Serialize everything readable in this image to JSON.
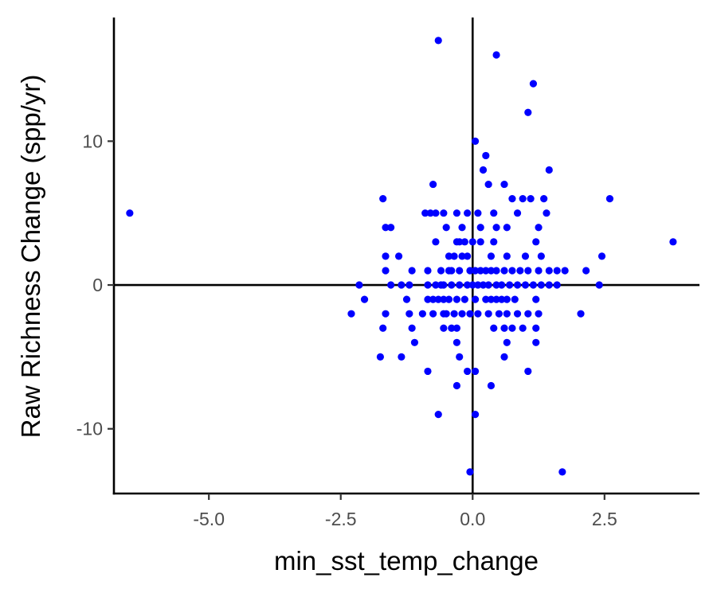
{
  "chart_data": {
    "type": "scatter",
    "title": "",
    "xlabel": "min_sst_temp_change",
    "ylabel": "Raw Richness Change (spp/yr)",
    "xlim": [
      -6.8,
      4.3
    ],
    "ylim": [
      -14.5,
      18.6
    ],
    "x_ticks": [
      {
        "value": -5.0,
        "label": "-5.0"
      },
      {
        "value": -2.5,
        "label": "-2.5"
      },
      {
        "value": 0.0,
        "label": "0.0"
      },
      {
        "value": 2.5,
        "label": "2.5"
      }
    ],
    "y_ticks": [
      {
        "value": -10,
        "label": "-10"
      },
      {
        "value": 0,
        "label": "0"
      },
      {
        "value": 10,
        "label": "10"
      }
    ],
    "reference_lines": {
      "x": 0,
      "y": 0
    },
    "grid": false,
    "point_color": "#0000ff",
    "points": [
      [
        -6.5,
        5
      ],
      [
        -0.65,
        17
      ],
      [
        0.45,
        16
      ],
      [
        1.15,
        14
      ],
      [
        1.05,
        12
      ],
      [
        0.05,
        10
      ],
      [
        0.25,
        9
      ],
      [
        0.2,
        8
      ],
      [
        1.45,
        8
      ],
      [
        0.3,
        7
      ],
      [
        -0.75,
        7
      ],
      [
        0.6,
        7
      ],
      [
        -1.7,
        6
      ],
      [
        0.75,
        6
      ],
      [
        0.95,
        6
      ],
      [
        1.35,
        6
      ],
      [
        2.6,
        6
      ],
      [
        1.1,
        6
      ],
      [
        -0.9,
        5
      ],
      [
        -0.7,
        5
      ],
      [
        -0.55,
        5
      ],
      [
        -0.3,
        5
      ],
      [
        -0.1,
        5
      ],
      [
        0.1,
        5
      ],
      [
        0.4,
        5
      ],
      [
        0.85,
        5
      ],
      [
        1.4,
        5
      ],
      [
        -0.8,
        5
      ],
      [
        -1.65,
        4
      ],
      [
        -1.55,
        4
      ],
      [
        -0.5,
        4
      ],
      [
        -0.2,
        4
      ],
      [
        0.45,
        4
      ],
      [
        0.15,
        4
      ],
      [
        1.25,
        4
      ],
      [
        0.65,
        4
      ],
      [
        -0.7,
        3
      ],
      [
        -0.3,
        3
      ],
      [
        -0.15,
        3
      ],
      [
        0.0,
        3
      ],
      [
        0.15,
        3
      ],
      [
        0.4,
        3
      ],
      [
        1.2,
        3
      ],
      [
        3.8,
        3
      ],
      [
        -0.25,
        3
      ],
      [
        -1.65,
        2
      ],
      [
        -1.4,
        2
      ],
      [
        -0.45,
        2
      ],
      [
        -0.35,
        2
      ],
      [
        -0.1,
        2
      ],
      [
        0.35,
        2
      ],
      [
        0.65,
        2
      ],
      [
        1.0,
        2
      ],
      [
        1.3,
        2
      ],
      [
        2.45,
        2
      ],
      [
        -0.2,
        2
      ],
      [
        -1.65,
        1
      ],
      [
        -1.15,
        1
      ],
      [
        -0.85,
        1
      ],
      [
        -0.6,
        1
      ],
      [
        -0.4,
        1
      ],
      [
        -0.25,
        1
      ],
      [
        -0.05,
        1
      ],
      [
        0.05,
        1
      ],
      [
        0.15,
        1
      ],
      [
        0.25,
        1
      ],
      [
        0.45,
        1
      ],
      [
        0.6,
        1
      ],
      [
        0.75,
        1
      ],
      [
        0.9,
        1
      ],
      [
        1.05,
        1
      ],
      [
        1.25,
        1
      ],
      [
        1.45,
        1
      ],
      [
        1.6,
        1
      ],
      [
        1.75,
        1
      ],
      [
        2.15,
        1
      ],
      [
        -0.45,
        1
      ],
      [
        0.35,
        1
      ],
      [
        -2.15,
        0
      ],
      [
        -1.55,
        0
      ],
      [
        -1.35,
        0
      ],
      [
        -1.2,
        0
      ],
      [
        -0.85,
        0
      ],
      [
        -0.7,
        0
      ],
      [
        -0.55,
        0
      ],
      [
        -0.4,
        0
      ],
      [
        -0.25,
        0
      ],
      [
        -0.1,
        0
      ],
      [
        0.0,
        0
      ],
      [
        0.1,
        0
      ],
      [
        0.2,
        0
      ],
      [
        0.3,
        0
      ],
      [
        0.45,
        0
      ],
      [
        0.55,
        0
      ],
      [
        0.7,
        0
      ],
      [
        0.85,
        0
      ],
      [
        1.0,
        0
      ],
      [
        1.15,
        0
      ],
      [
        1.3,
        0
      ],
      [
        1.45,
        0
      ],
      [
        1.6,
        0
      ],
      [
        2.4,
        0
      ],
      [
        -0.6,
        0
      ],
      [
        -2.05,
        -1
      ],
      [
        -1.25,
        -1
      ],
      [
        -0.85,
        -1
      ],
      [
        -0.65,
        -1
      ],
      [
        -0.55,
        -1
      ],
      [
        -0.45,
        -1
      ],
      [
        -0.3,
        -1
      ],
      [
        -0.15,
        -1
      ],
      [
        0.05,
        -1
      ],
      [
        0.25,
        -1
      ],
      [
        0.45,
        -1
      ],
      [
        0.55,
        -1
      ],
      [
        0.65,
        -1
      ],
      [
        0.8,
        -1
      ],
      [
        1.2,
        -1
      ],
      [
        -0.75,
        -1
      ],
      [
        0.35,
        -1
      ],
      [
        -2.3,
        -2
      ],
      [
        -1.65,
        -2
      ],
      [
        -1.2,
        -2
      ],
      [
        -0.95,
        -2
      ],
      [
        -0.75,
        -2
      ],
      [
        -0.5,
        -2
      ],
      [
        -0.35,
        -2
      ],
      [
        -0.2,
        -2
      ],
      [
        -0.05,
        -2
      ],
      [
        0.1,
        -2
      ],
      [
        0.3,
        -2
      ],
      [
        0.5,
        -2
      ],
      [
        0.65,
        -2
      ],
      [
        0.85,
        -2
      ],
      [
        1.05,
        -2
      ],
      [
        1.25,
        -2
      ],
      [
        2.05,
        -2
      ],
      [
        -0.55,
        -2
      ],
      [
        -1.7,
        -3
      ],
      [
        -1.15,
        -3
      ],
      [
        -0.55,
        -3
      ],
      [
        -0.4,
        -3
      ],
      [
        -0.3,
        -3
      ],
      [
        0.4,
        -3
      ],
      [
        0.75,
        -3
      ],
      [
        0.95,
        -3
      ],
      [
        1.2,
        -3
      ],
      [
        0.6,
        -3
      ],
      [
        -1.1,
        -4
      ],
      [
        -0.3,
        -4
      ],
      [
        0.65,
        -4
      ],
      [
        1.2,
        -4
      ],
      [
        -1.75,
        -5
      ],
      [
        -1.35,
        -5
      ],
      [
        -0.25,
        -5
      ],
      [
        0.6,
        -5
      ],
      [
        -0.85,
        -6
      ],
      [
        0.05,
        -6
      ],
      [
        1.05,
        -6
      ],
      [
        -0.1,
        -6
      ],
      [
        -0.3,
        -7
      ],
      [
        0.35,
        -7
      ],
      [
        -0.65,
        -9
      ],
      [
        0.05,
        -9
      ],
      [
        -0.05,
        -13
      ],
      [
        1.7,
        -13
      ]
    ]
  }
}
